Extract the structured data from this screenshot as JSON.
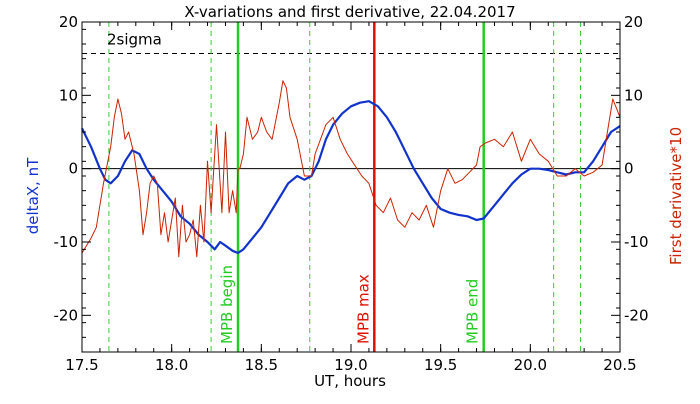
{
  "chart_data": {
    "type": "line",
    "title": "X-variations and first derivative, 22.04.2017",
    "xlabel": "UT, hours",
    "ylabel_left": "deltaX, nT",
    "ylabel_right": "First derivative*10",
    "xlim": [
      17.5,
      20.5
    ],
    "ylim": [
      -25,
      20
    ],
    "xticks": [
      "17.5",
      "18.0",
      "18.5",
      "19.0",
      "19.5",
      "20.0",
      "20.5"
    ],
    "yticks": [
      "20",
      "10",
      "0",
      "-10",
      "-20"
    ],
    "sigma_label": "2sigma",
    "sigma_level": 15.7,
    "colors": {
      "deltaX": "#1133cc",
      "derivative": "#cc2200",
      "mpb_boundary": "#22cc22",
      "mpb_max": "#dd1100",
      "dashed_green": "#33cc33",
      "axes": "#000000"
    },
    "series": [
      {
        "name": "deltaX, nT",
        "x": [
          17.5,
          17.55,
          17.6,
          17.63,
          17.66,
          17.7,
          17.74,
          17.78,
          17.82,
          17.86,
          17.9,
          17.95,
          18.0,
          18.05,
          18.1,
          18.15,
          18.2,
          18.24,
          18.27,
          18.3,
          18.34,
          18.37,
          18.4,
          18.45,
          18.5,
          18.55,
          18.6,
          18.65,
          18.7,
          18.74,
          18.78,
          18.82,
          18.86,
          18.9,
          18.95,
          19.0,
          19.05,
          19.1,
          19.15,
          19.2,
          19.25,
          19.3,
          19.35,
          19.4,
          19.45,
          19.5,
          19.55,
          19.6,
          19.65,
          19.7,
          19.74,
          19.8,
          19.85,
          19.9,
          19.95,
          20.0,
          20.05,
          20.1,
          20.15,
          20.2,
          20.25,
          20.3,
          20.35,
          20.4,
          20.45,
          20.5
        ],
        "values": [
          5.5,
          3.0,
          0.0,
          -1.5,
          -2.0,
          -1.0,
          1.0,
          2.5,
          2.0,
          0.0,
          -1.5,
          -3.0,
          -4.5,
          -6.5,
          -7.5,
          -9.0,
          -10.0,
          -11.0,
          -10.0,
          -10.5,
          -11.2,
          -11.5,
          -11.0,
          -9.5,
          -8.0,
          -6.0,
          -4.0,
          -2.0,
          -1.0,
          -1.5,
          -1.0,
          1.0,
          4.0,
          6.0,
          7.5,
          8.5,
          9.0,
          9.2,
          8.5,
          7.0,
          5.0,
          2.5,
          0.0,
          -2.0,
          -4.0,
          -5.5,
          -6.0,
          -6.3,
          -6.5,
          -7.0,
          -6.8,
          -5.0,
          -3.5,
          -2.0,
          -0.8,
          0.0,
          0.0,
          -0.2,
          -0.5,
          -0.8,
          -0.5,
          -0.5,
          1.0,
          3.0,
          5.0,
          5.8
        ]
      },
      {
        "name": "First derivative*10",
        "x": [
          17.5,
          17.55,
          17.58,
          17.62,
          17.66,
          17.68,
          17.7,
          17.72,
          17.74,
          17.76,
          17.79,
          17.82,
          17.84,
          17.86,
          17.88,
          17.9,
          17.92,
          17.94,
          17.96,
          17.98,
          18.0,
          18.02,
          18.04,
          18.06,
          18.08,
          18.1,
          18.12,
          18.14,
          18.16,
          18.18,
          18.2,
          18.22,
          18.25,
          18.28,
          18.3,
          18.32,
          18.34,
          18.36,
          18.37,
          18.38,
          18.4,
          18.42,
          18.45,
          18.48,
          18.5,
          18.53,
          18.56,
          18.6,
          18.62,
          18.64,
          18.66,
          18.7,
          18.74,
          18.78,
          18.8,
          18.83,
          18.86,
          18.9,
          18.94,
          18.98,
          19.02,
          19.06,
          19.1,
          19.14,
          19.18,
          19.22,
          19.26,
          19.3,
          19.34,
          19.38,
          19.42,
          19.46,
          19.5,
          19.54,
          19.58,
          19.62,
          19.66,
          19.7,
          19.72,
          19.75,
          19.8,
          19.85,
          19.9,
          19.95,
          20.0,
          20.05,
          20.1,
          20.15,
          20.2,
          20.25,
          20.3,
          20.35,
          20.4,
          20.43,
          20.46,
          20.5
        ],
        "values": [
          -11.5,
          -9.5,
          -8.0,
          -2.0,
          3.0,
          7.0,
          9.5,
          7.5,
          4.0,
          5.0,
          2.0,
          -3.0,
          -9.0,
          -6.0,
          -2.0,
          -1.0,
          -2.0,
          -9.0,
          -6.0,
          -10.0,
          -7.0,
          -4.0,
          -12.0,
          -5.0,
          -10.0,
          -9.0,
          -7.0,
          -12.0,
          -5.0,
          -10.0,
          1.0,
          -6.0,
          6.0,
          -6.0,
          5.0,
          -6.0,
          -3.0,
          -6.0,
          0.0,
          0.0,
          2.0,
          7.0,
          4.0,
          5.0,
          7.0,
          5.0,
          4.0,
          9.0,
          12.0,
          11.0,
          7.0,
          4.0,
          -1.0,
          -1.0,
          2.0,
          4.0,
          6.0,
          7.0,
          4.0,
          2.0,
          0.5,
          -1.0,
          -2.0,
          -5.0,
          -6.0,
          -4.0,
          -7.0,
          -8.0,
          -6.0,
          -7.0,
          -5.0,
          -8.0,
          -3.0,
          0.0,
          -2.0,
          -1.5,
          -0.5,
          0.5,
          3.0,
          3.5,
          4.0,
          3.0,
          5.0,
          1.0,
          4.0,
          2.0,
          1.0,
          -1.0,
          -1.0,
          0.0,
          -1.0,
          -0.5,
          0.5,
          5.0,
          9.5,
          7.0
        ]
      }
    ],
    "vlines": [
      {
        "x": 17.65,
        "label": "",
        "kind": "dashed_green"
      },
      {
        "x": 18.22,
        "label": "",
        "kind": "dashed_green"
      },
      {
        "x": 18.37,
        "label": "MPB begin",
        "kind": "mpb_boundary"
      },
      {
        "x": 18.77,
        "label": "",
        "kind": "dashed_green"
      },
      {
        "x": 19.13,
        "label": "MPB max",
        "kind": "mpb_max"
      },
      {
        "x": 19.74,
        "label": "MPB end",
        "kind": "mpb_boundary"
      },
      {
        "x": 20.13,
        "label": "",
        "kind": "dashed_green"
      },
      {
        "x": 20.28,
        "label": "",
        "kind": "dashed_green"
      }
    ]
  }
}
